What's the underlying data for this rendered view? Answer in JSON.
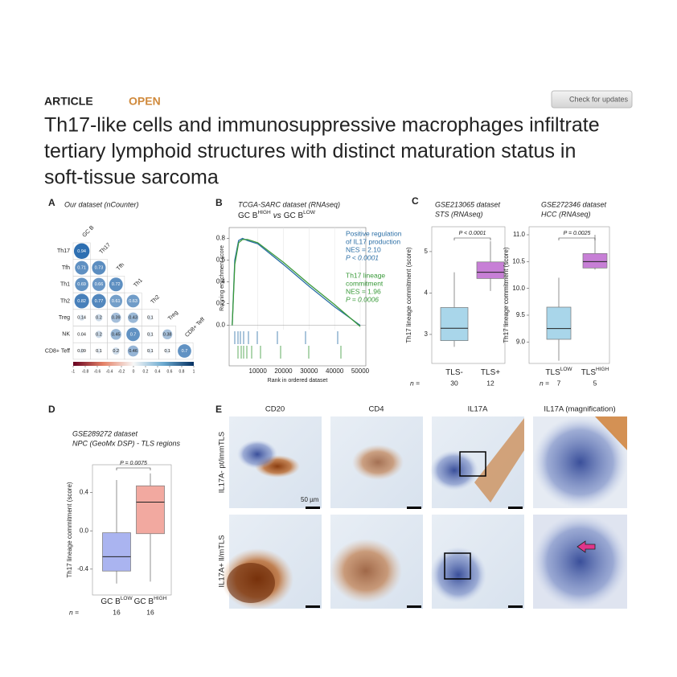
{
  "header": {
    "article_type": "ARTICLE",
    "access": "OPEN",
    "check_updates": "Check for updates",
    "title_lines": [
      "Th17-like cells and immunosuppressive macrophages infiltrate",
      "tertiary lymphoid structures with distinct maturation status in",
      "soft-tissue sarcoma"
    ]
  },
  "panel_a": {
    "type": "corrplot",
    "label": "A",
    "title": "Our dataset (nCounter)",
    "rows": [
      "Th17",
      "Tfh",
      "Th1",
      "Th2",
      "Treg",
      "NK",
      "CD8+ Teff"
    ],
    "columns": [
      "GC B",
      "Th17",
      "Tfh",
      "Th1",
      "Th2",
      "Treg",
      "CD8+ Teff"
    ],
    "values": [
      [
        0.94
      ],
      [
        0.71,
        0.73
      ],
      [
        0.69,
        0.66,
        0.72
      ],
      [
        0.82,
        0.77,
        0.61,
        0.63
      ],
      [
        0.14,
        0.2,
        0.39,
        0.43,
        0.1
      ],
      [
        0.04,
        0.2,
        0.45,
        0.7,
        0.1,
        0.38
      ],
      [
        0.09,
        0.1,
        0.2,
        0.46,
        0.1,
        0.1,
        0.7
      ]
    ],
    "colorbar_lim": [
      -1,
      1
    ],
    "colorbar_ticks": [
      -1,
      -0.8,
      -0.6,
      -0.4,
      -0.2,
      0,
      0.2,
      0.4,
      0.6,
      0.8,
      1
    ]
  },
  "panel_b": {
    "type": "line",
    "label": "B",
    "title": "TCGA-SARC dataset (RNAseq)",
    "subtitle": {
      "a": "GC B",
      "a_sup": "HIGH",
      "mid": "vs",
      "b": "GC B",
      "b_sup": "LOW"
    },
    "y_label": "Running enrichment score",
    "x_label": "Rank in ordered dataset",
    "xlim": [
      -1200,
      52200
    ],
    "ylim": [
      -0.04,
      0.9
    ],
    "xticks": [
      10000,
      20000,
      30000,
      40000,
      50000
    ],
    "yticks": [
      {
        "value": 0,
        "label": "0.0"
      },
      0.2,
      0.4,
      0.6,
      0.8
    ],
    "x": [
      0,
      1000,
      2500,
      4000,
      6000,
      10000,
      20000,
      30000,
      40000,
      50000
    ],
    "series": [
      {
        "name": "Positive regulation of IL17 production",
        "color": "#2c6fa6",
        "values": [
          0,
          0.6,
          0.78,
          0.8,
          0.78,
          0.75,
          0.56,
          0.36,
          0.17,
          0.0
        ]
      },
      {
        "name": "Th17 lineage commitment",
        "color": "#3a9a3a",
        "values": [
          0,
          0.56,
          0.76,
          0.79,
          0.79,
          0.76,
          0.58,
          0.38,
          0.19,
          -0.01
        ]
      }
    ],
    "annotations": [
      {
        "color": "#2c6fa6",
        "lines": [
          "Positive regulation",
          "of IL17 production",
          "NES = 2.10"
        ],
        "p": "P < 0.0001"
      },
      {
        "color": "#3a9a3a",
        "lines": [
          "Th17 lineage",
          "commitment",
          "NES = 1.96"
        ],
        "p": "P = 0.0006"
      }
    ]
  },
  "panel_c": {
    "label": "C",
    "charts": [
      {
        "type": "box",
        "title": "GSE213065 dataset",
        "subtitle": "STS (RNAseq)",
        "y_label": "Th17 lineage commitment (score)",
        "ylim": [
          2.3,
          5.6
        ],
        "yticks": [
          3,
          4,
          5
        ],
        "p_value": "P < 0.0001",
        "categories": [
          {
            "text": "TLS-"
          },
          {
            "text": "TLS+"
          }
        ],
        "n_label": "n =",
        "n": [
          30,
          12
        ],
        "colors": [
          "#a9d6ea",
          "#c77fd6"
        ],
        "boxes": [
          {
            "min": 2.7,
            "q1": 2.85,
            "median": 3.15,
            "q3": 3.65,
            "max": 4.5
          },
          {
            "min": 4.05,
            "q1": 4.35,
            "median": 4.5,
            "q3": 4.75,
            "max": 5.25
          }
        ]
      },
      {
        "type": "box",
        "title": "GSE272346 dataset",
        "subtitle": "HCC (RNAseq)",
        "y_label": "Th17 lineage commitment (score)",
        "ylim": [
          8.6,
          11.15
        ],
        "yticks": [
          {
            "value": 9,
            "label": "9.0"
          },
          9.5,
          {
            "value": 10,
            "label": "10.0"
          },
          10.5,
          {
            "value": 11,
            "label": "11.0"
          }
        ],
        "p_value": "P = 0.0025",
        "categories": [
          {
            "text": "TLS",
            "sup": "LOW"
          },
          {
            "text": "TLS",
            "sup": "HIGH"
          }
        ],
        "n_label": "n =",
        "n": [
          7,
          5
        ],
        "colors": [
          "#a9d6ea",
          "#c77fd6"
        ],
        "boxes": [
          {
            "min": 8.65,
            "q1": 9.05,
            "median": 9.25,
            "q3": 9.65,
            "max": 10.2
          },
          {
            "min": 10.35,
            "q1": 10.38,
            "median": 10.5,
            "q3": 10.65,
            "max": 11.0
          }
        ]
      }
    ]
  },
  "panel_d": {
    "type": "box",
    "label": "D",
    "title": "GSE289272 dataset",
    "subtitle": "NPC (GeoMx DSP) - TLS regions",
    "y_label": "Th17 lineage commitment (score)",
    "ylim": [
      -0.67,
      0.69
    ],
    "yticks": [
      -0.4,
      {
        "value": 0,
        "label": "0.0"
      },
      0.4
    ],
    "p_value": "P = 0.0075",
    "categories": [
      {
        "text": "GC B",
        "sup": "LOW"
      },
      {
        "text": "GC B",
        "sup": "HIGH"
      }
    ],
    "n_label": "n =",
    "n": [
      16,
      16
    ],
    "colors": [
      "#aab4f0",
      "#f2a9a0"
    ],
    "boxes": [
      {
        "min": -0.55,
        "q1": -0.42,
        "median": -0.27,
        "q3": -0.02,
        "max": 0.53
      },
      {
        "min": -0.53,
        "q1": -0.03,
        "median": 0.3,
        "q3": 0.47,
        "max": 0.6
      }
    ]
  },
  "panel_e": {
    "label": "E",
    "columns": [
      "CD20",
      "CD4",
      "IL17A",
      "IL17A (magnification)"
    ],
    "rows": [
      "IL17A- pt/immTLS",
      "IL17A+ ll/mTLS"
    ],
    "scale_bar": "50 µm"
  }
}
